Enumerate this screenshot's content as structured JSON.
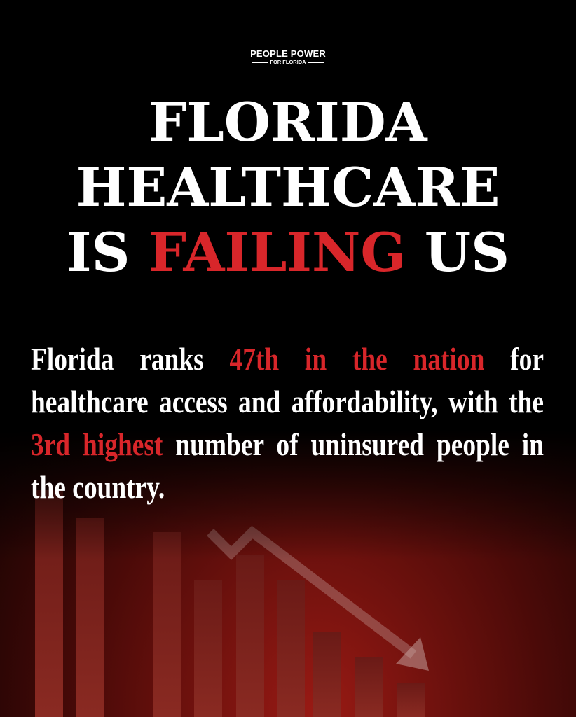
{
  "logo": {
    "line1": "PEOPLE POWER",
    "line2": "FOR FLORIDA"
  },
  "headline": {
    "line1": "FLORIDA",
    "line2": "HEALTHCARE",
    "line3_pre": "IS ",
    "line3_highlight": "FAILING",
    "line3_post": " US"
  },
  "body": {
    "part1": "Florida ranks ",
    "highlight1": "47th in the nation",
    "part2": " for healthcare access and affordability, with the ",
    "highlight2": "3rd highest",
    "part3": " number of uninsured people in the country."
  },
  "colors": {
    "accent": "#d8262a",
    "background": "#000000",
    "text": "#ffffff"
  },
  "background_image": "declining-bar-chart-with-arrow"
}
